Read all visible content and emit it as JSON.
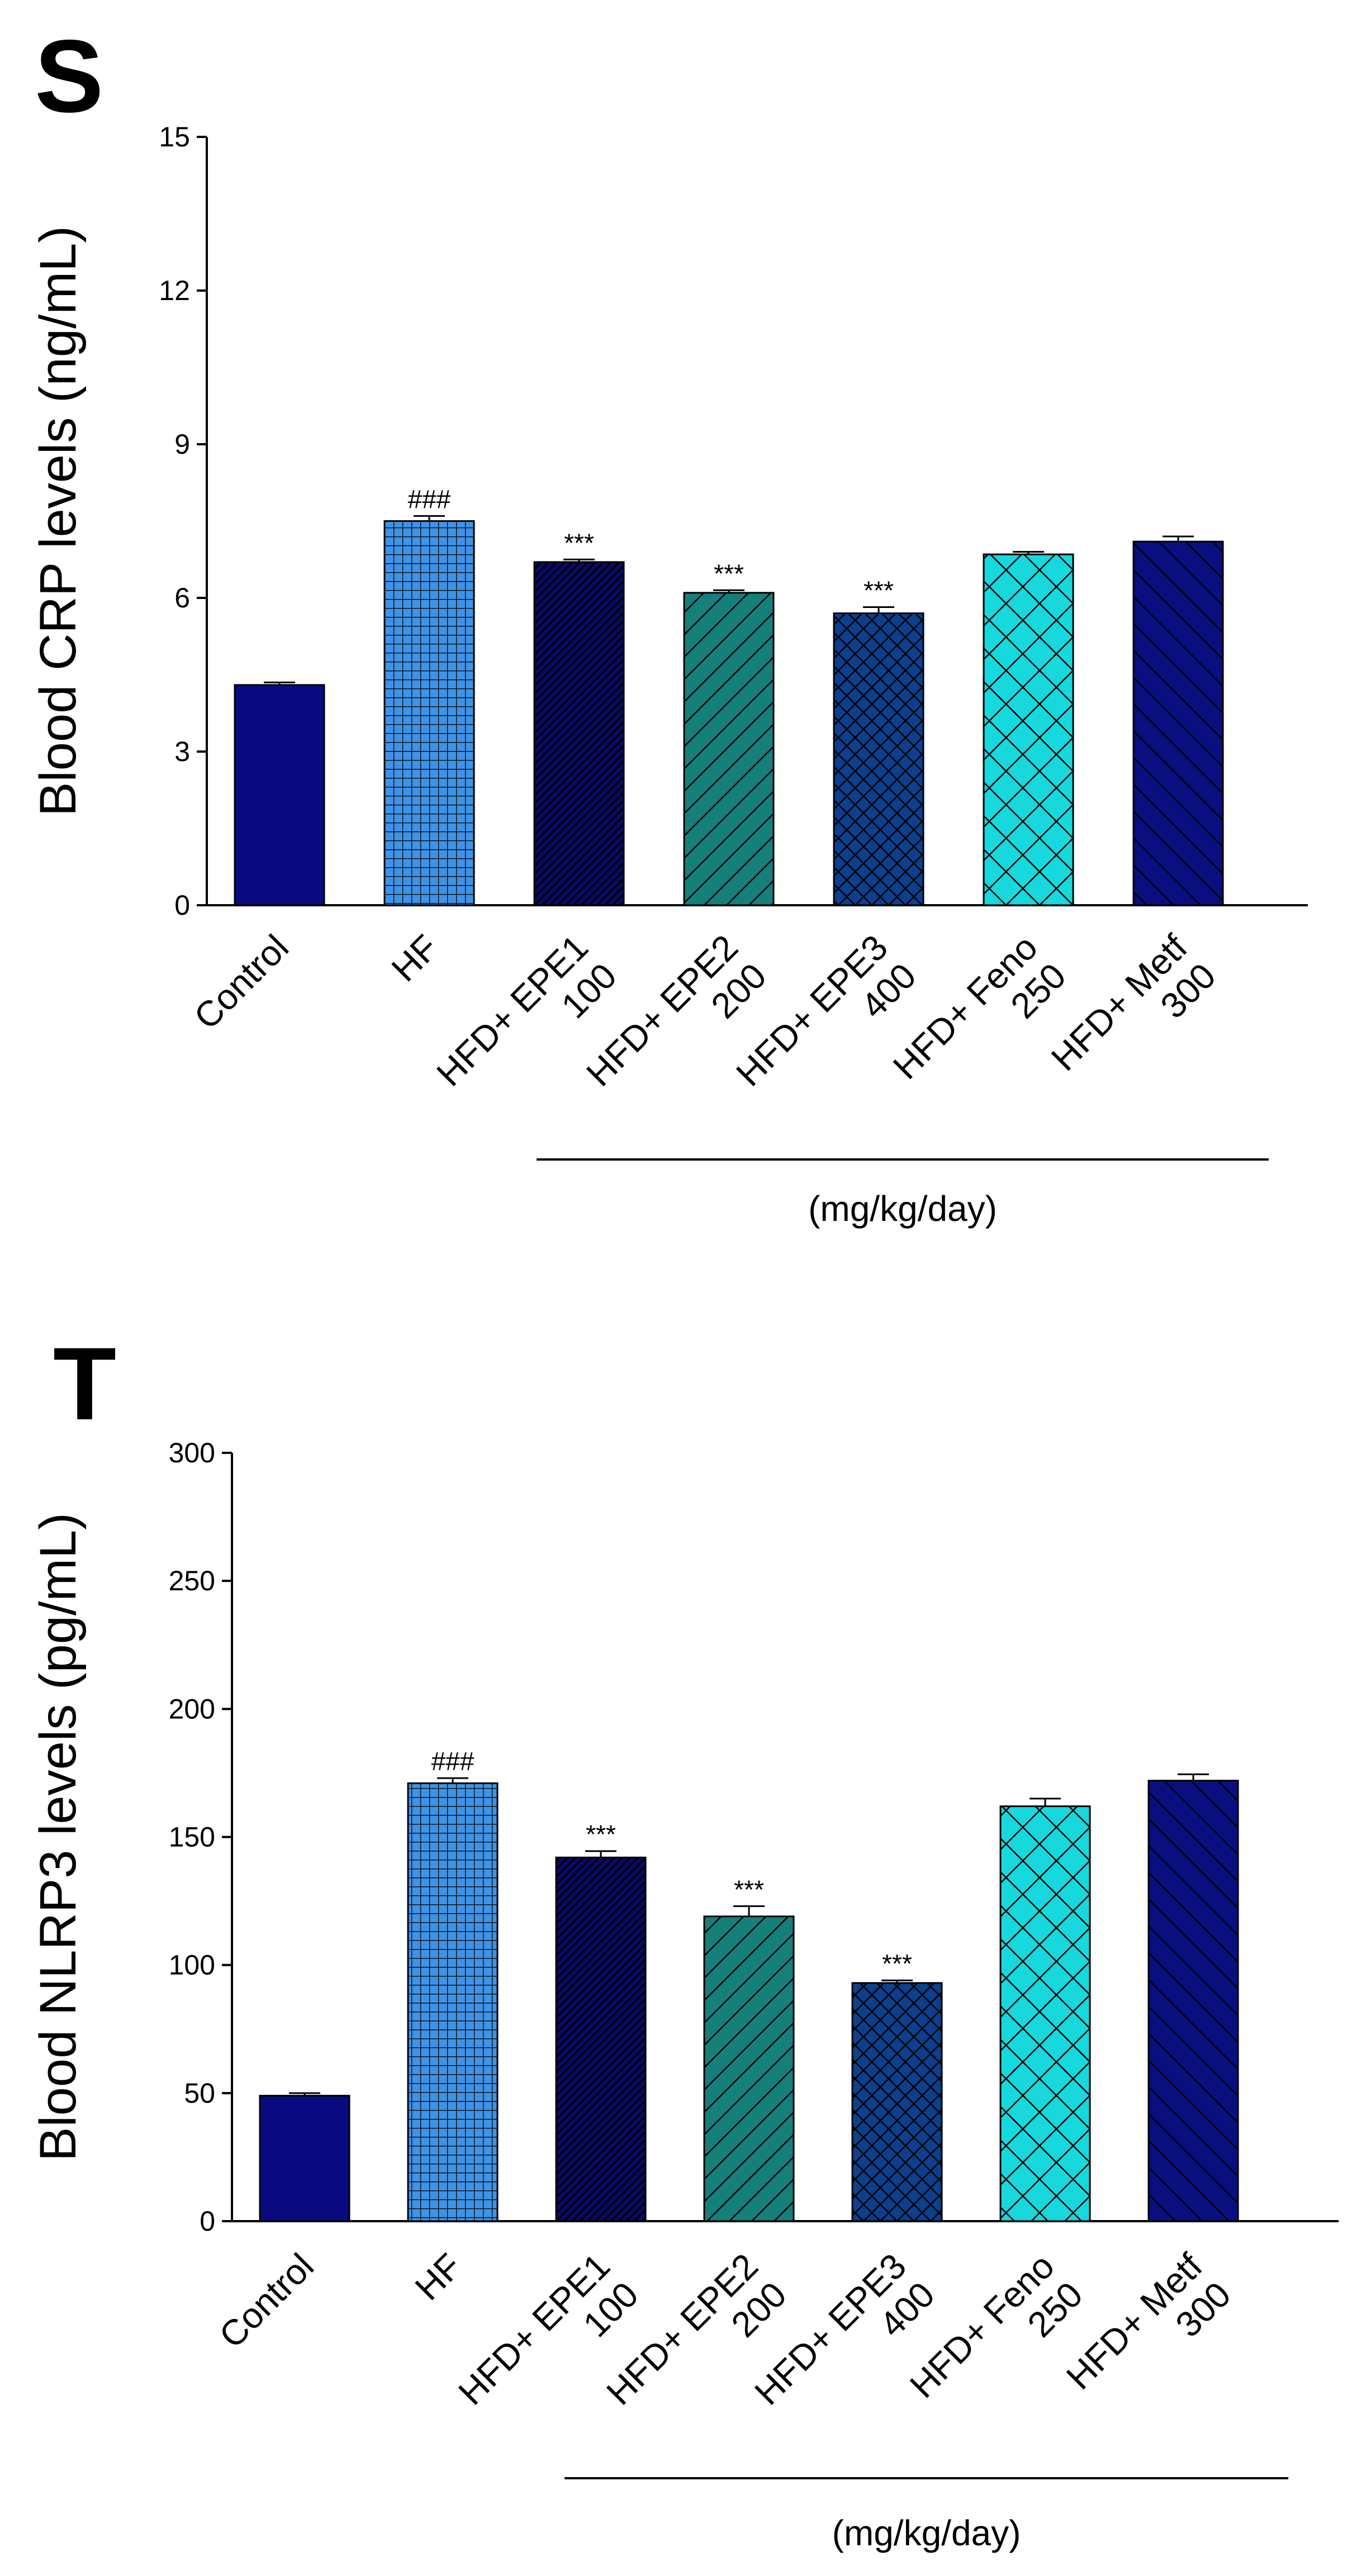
{
  "chart_data": [
    {
      "type": "bar",
      "panel": "S",
      "title": "",
      "xlabel": "",
      "ylabel": "Blood CRP levels (ng/mL)",
      "ylim": [
        0,
        15
      ],
      "yticks": [
        0,
        3,
        6,
        9,
        12,
        15
      ],
      "categories": [
        [
          "Control"
        ],
        [
          "HF"
        ],
        [
          "HFD+ EPE1",
          "100"
        ],
        [
          "HFD+ EPE2",
          "200"
        ],
        [
          "HFD+ EPE3",
          "400"
        ],
        [
          "HFD+ Feno",
          "250"
        ],
        [
          "HFD+ Metf",
          "300"
        ]
      ],
      "values": [
        4.3,
        7.5,
        6.7,
        6.1,
        5.7,
        6.85,
        7.1
      ],
      "errors": [
        0.05,
        0.1,
        0.05,
        0.05,
        0.12,
        0.05,
        0.1
      ],
      "annotations": [
        "",
        "###",
        "***",
        "***",
        "***",
        "",
        ""
      ],
      "group_label": "(mg/kg/day)"
    },
    {
      "type": "bar",
      "panel": "T",
      "title": "",
      "xlabel": "",
      "ylabel": "Blood NLRP3 levels (pg/mL)",
      "ylim": [
        0,
        300
      ],
      "yticks": [
        0,
        50,
        100,
        150,
        200,
        250,
        300
      ],
      "categories": [
        [
          "Control"
        ],
        [
          "HF"
        ],
        [
          "HFD+ EPE1",
          "100"
        ],
        [
          "HFD+ EPE2",
          "200"
        ],
        [
          "HFD+ EPE3",
          "400"
        ],
        [
          "HFD+ Feno",
          "250"
        ],
        [
          "HFD+ Metf",
          "300"
        ]
      ],
      "values": [
        49,
        171,
        142,
        119,
        93,
        162,
        172
      ],
      "errors": [
        1,
        2,
        2.5,
        4,
        1,
        3,
        2.5
      ],
      "annotations": [
        "",
        "###",
        "***",
        "***",
        "***",
        "",
        ""
      ],
      "group_label": "(mg/kg/day)"
    }
  ],
  "colors": {
    "control": "#0a0a80",
    "hf": "#3f93e6",
    "epe1": "#0a0a66",
    "epe2": "#157f7c",
    "epe3": "#0c3f8c",
    "feno": "#16d8dd",
    "metf": "#0a0f80",
    "pattern_line": "#000000"
  },
  "patterns": [
    "solid",
    "grid",
    "dense-diagonal",
    "diagonal",
    "crosshatch",
    "crosshatch-wide",
    "back-diagonal"
  ]
}
